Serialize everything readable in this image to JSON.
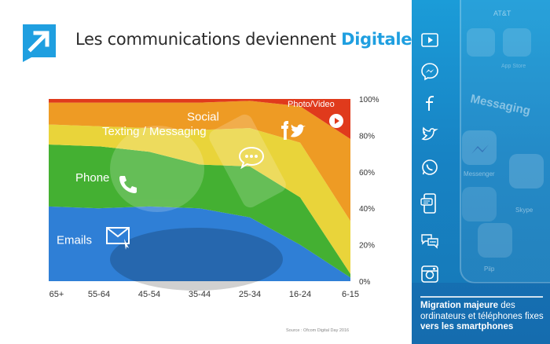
{
  "header": {
    "title_prefix": "Les communications deviennent ",
    "title_highlight": "Digitales"
  },
  "colors": {
    "accent": "#1f9fe0",
    "sidebar": "#1783c4"
  },
  "chart_data": {
    "type": "area",
    "stacked": true,
    "percent": true,
    "categories": [
      "65+",
      "55-64",
      "45-54",
      "35-44",
      "25-34",
      "16-24",
      "6-15"
    ],
    "yticks": [
      "0%",
      "20%",
      "40%",
      "60%",
      "80%",
      "100%"
    ],
    "ylim": [
      0,
      100
    ],
    "series": [
      {
        "name": "Emails",
        "color": "#2f7fd6",
        "icon": "envelope-icon",
        "values": [
          41,
          40,
          41,
          40,
          35,
          20,
          2
        ]
      },
      {
        "name": "Phone",
        "color": "#44b032",
        "icon": "phone-icon",
        "values": [
          34,
          34,
          30,
          24,
          28,
          26,
          2
        ]
      },
      {
        "name": "Texting / Messaging",
        "color": "#e9d43a",
        "icon": "chat-bubble-icon",
        "values": [
          11,
          11,
          13,
          19,
          21,
          30,
          29
        ]
      },
      {
        "name": "Social",
        "color": "#ee9b24",
        "icon": "facebook-twitter-icon",
        "values": [
          12,
          13,
          14,
          15,
          15,
          20,
          45
        ]
      },
      {
        "name": "Photo/Video",
        "color": "#e03a1c",
        "icon": "play-icon",
        "values": [
          2,
          2,
          2,
          2,
          1,
          4,
          22
        ]
      }
    ],
    "grid": false,
    "legend": "inline"
  },
  "source": "Source : Ofcom Digital Day 2016",
  "sidebar": {
    "icons": [
      "youtube-icon",
      "messenger-icon",
      "facebook-icon",
      "twitter-icon",
      "whatsapp-icon",
      "sms-icon",
      "chat-icon",
      "instagram-icon"
    ],
    "caption_bold_1": "Migration majeure",
    "caption_text_1": " des ordinateurs et téléphones fixes ",
    "caption_bold_2": "vers les smartphones",
    "phone_texts": {
      "carrier": "AT&T",
      "messaging": "Messaging",
      "messenger": "Messenger",
      "skype": "Skype",
      "app_store": "App Store",
      "piip": "Piip"
    }
  }
}
